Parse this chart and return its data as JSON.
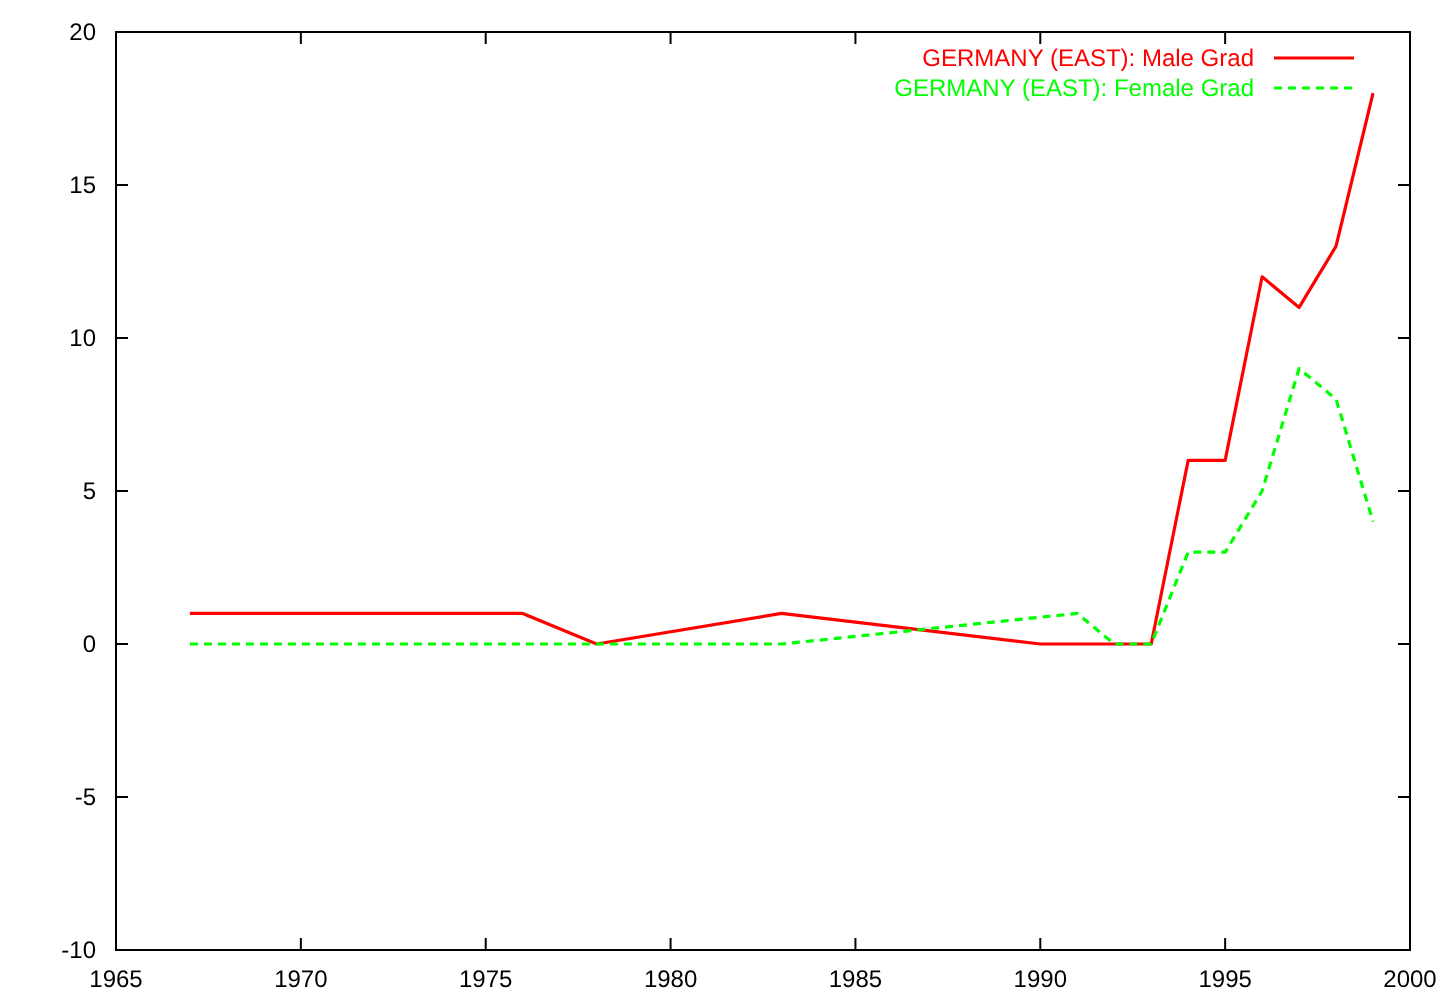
{
  "chart_data": {
    "type": "line",
    "xlim": [
      1965,
      2000
    ],
    "xticks": [
      1965,
      1970,
      1975,
      1980,
      1985,
      1990,
      1995,
      2000
    ],
    "ylim": [
      -10,
      20
    ],
    "yticks": [
      -10,
      -5,
      0,
      5,
      10,
      15,
      20
    ],
    "legend": "top right",
    "series": [
      {
        "name": "GERMANY (EAST): Male Grad",
        "color": "#ff0000",
        "line_style": "solid",
        "x": [
          1967,
          1976,
          1978,
          1983,
          1990,
          1991,
          1992,
          1993,
          1994,
          1995,
          1996,
          1997,
          1998,
          1999
        ],
        "values": [
          1,
          1,
          0,
          1,
          0,
          0,
          0,
          0,
          6,
          6,
          12,
          11,
          13,
          18
        ]
      },
      {
        "name": "GERMANY (EAST): Female Grad",
        "color": "#00ff00",
        "line_style": "dashed",
        "x": [
          1967,
          1983,
          1991,
          1992,
          1993,
          1994,
          1995,
          1996,
          1997,
          1998,
          1999
        ],
        "values": [
          0,
          0,
          1,
          0,
          0,
          3,
          3,
          5,
          9,
          8,
          4
        ]
      }
    ]
  }
}
